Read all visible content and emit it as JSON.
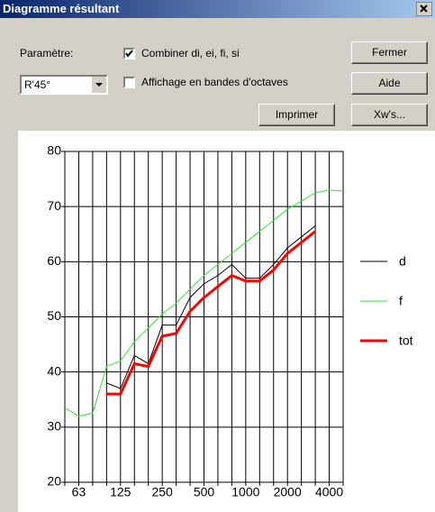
{
  "window": {
    "title": "Diagramme résultant"
  },
  "controls": {
    "parameter_label": "Paramètre:",
    "parameter_value": "R'45°",
    "combine": {
      "label": "Combiner di, ei, fi, si",
      "checked": true
    },
    "octaves": {
      "label": "Affichage en bandes d'octaves",
      "checked": false
    },
    "buttons": [
      "Fermer",
      "Aide",
      "Imprimer",
      "Xw's..."
    ]
  },
  "chart_data": {
    "type": "line",
    "categories": [
      null,
      "63",
      null,
      null,
      "125",
      null,
      null,
      "250",
      null,
      null,
      "500",
      null,
      null,
      "1000",
      null,
      null,
      "2000",
      null,
      null,
      "4000",
      null
    ],
    "series": [
      {
        "name": "d",
        "color": "#000000",
        "values": [
          null,
          null,
          null,
          38,
          37,
          43,
          41.5,
          48.5,
          48.5,
          53.5,
          56,
          57.5,
          59.5,
          57,
          57,
          59.5,
          62.5,
          64.5,
          66.5,
          null,
          null
        ]
      },
      {
        "name": "f",
        "color": "#33e633",
        "values": [
          33.5,
          32,
          32.5,
          41,
          42,
          45.5,
          48,
          50.5,
          52.5,
          55,
          57.5,
          59.5,
          61.5,
          63.5,
          65.5,
          67.5,
          69.5,
          71,
          72.5,
          73,
          72.8
        ]
      },
      {
        "name": "tot",
        "color": "#ff0000",
        "values": [
          null,
          null,
          null,
          36,
          36,
          41.5,
          41,
          46.5,
          47,
          51,
          53.5,
          55.5,
          57.5,
          56.5,
          56.5,
          58.5,
          61.5,
          63.5,
          65.5,
          null,
          null
        ]
      }
    ],
    "ylim": [
      20,
      80
    ],
    "yticks": [
      20,
      30,
      40,
      50,
      60,
      70,
      80
    ],
    "grid": true
  }
}
